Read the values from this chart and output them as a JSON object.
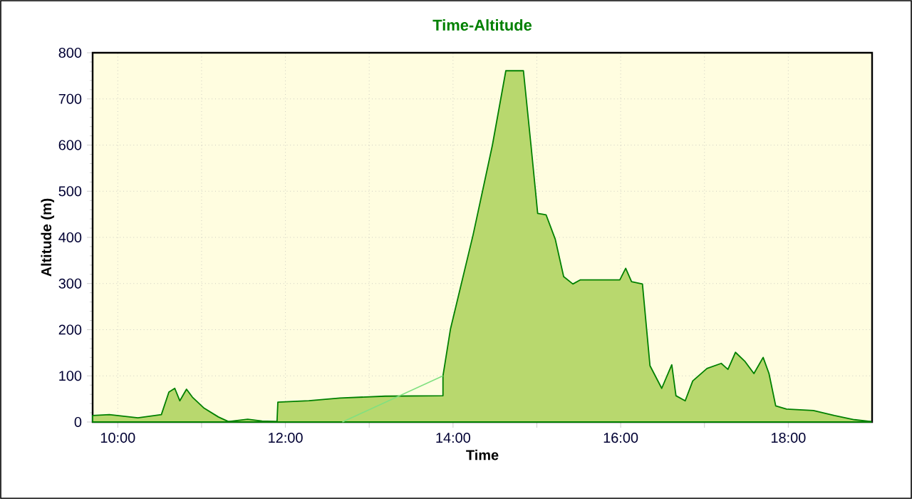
{
  "chart_data": {
    "type": "area",
    "title": "Time-Altitude",
    "xlabel": "Time",
    "ylabel": "Altitude (m)",
    "xlim": [
      9.7,
      19.0
    ],
    "ylim": [
      0,
      800
    ],
    "xticks": [
      {
        "value": 10,
        "label": "10:00"
      },
      {
        "value": 11,
        "label": null
      },
      {
        "value": 12,
        "label": "12:00"
      },
      {
        "value": 13,
        "label": null
      },
      {
        "value": 14,
        "label": "14:00"
      },
      {
        "value": 15,
        "label": null
      },
      {
        "value": 16,
        "label": "16:00"
      },
      {
        "value": 17,
        "label": null
      },
      {
        "value": 18,
        "label": "18:00"
      }
    ],
    "yticks": [
      0,
      100,
      200,
      300,
      400,
      500,
      600,
      700,
      800
    ],
    "grid": true,
    "series": [
      {
        "color": "#008000",
        "x": [
          9.7,
          9.9,
          10.24,
          10.52,
          10.61,
          10.68,
          10.74,
          10.82,
          10.89,
          11.03,
          11.2,
          11.32,
          11.55,
          11.72,
          11.9,
          11.91,
          12.28,
          12.65,
          13.19,
          13.88,
          13.88,
          13.97,
          14.24,
          14.47,
          14.63,
          14.84,
          14.93,
          15.01,
          15.11,
          15.22,
          15.32,
          15.43,
          15.52,
          15.99,
          16.06,
          16.13,
          16.26,
          16.35,
          16.49,
          16.61,
          16.66,
          16.77,
          16.86,
          17.03,
          17.2,
          17.28,
          17.37,
          17.48,
          17.59,
          17.7,
          17.77,
          17.85,
          17.98,
          18.3,
          18.55,
          18.79,
          18.99
        ],
        "values": [
          14,
          16,
          9,
          16,
          65,
          73,
          46,
          71,
          54,
          30,
          11,
          1,
          6,
          2,
          1,
          43,
          46,
          52,
          56,
          57,
          100,
          202,
          406,
          600,
          761,
          761,
          600,
          452,
          449,
          396,
          315,
          299,
          308,
          308,
          333,
          304,
          299,
          122,
          73,
          124,
          57,
          46,
          89,
          116,
          127,
          114,
          151,
          132,
          105,
          140,
          105,
          35,
          28,
          25,
          14,
          5,
          1
        ]
      },
      {
        "type": "line",
        "color": "#80e080",
        "x": [
          12.68,
          13.88
        ],
        "values": [
          0,
          100
        ]
      }
    ]
  }
}
